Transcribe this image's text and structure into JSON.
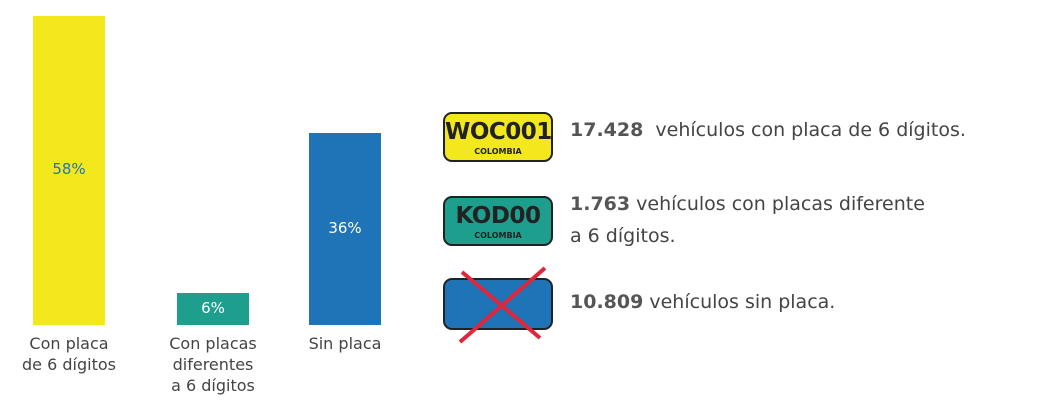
{
  "chart_data": {
    "type": "bar",
    "categories": [
      [
        "Con placa",
        "de 6 dígitos"
      ],
      [
        "Con placas",
        "diferentes",
        "a 6 dígitos"
      ],
      [
        "Sin placa"
      ]
    ],
    "values": [
      58,
      6,
      36
    ],
    "value_labels": [
      "58%",
      "6%",
      "36%"
    ],
    "colors": [
      "#f2e81c",
      "#1e9e8c",
      "#1f73b7"
    ],
    "value_label_colors": [
      "#1f73b7",
      "#ffffff",
      "#ffffff"
    ]
  },
  "legend": [
    {
      "plate": "WOC001",
      "country": "COLOMBIA",
      "count": "17.428",
      "lines": [
        "vehículos con placa de 6 dígitos."
      ]
    },
    {
      "plate": "KOD00",
      "country": "COLOMBIA",
      "count": "1.763",
      "lines": [
        "vehículos con placas diferente",
        "a 6 dígitos."
      ]
    },
    {
      "count": "10.809",
      "lines": [
        "vehículos sin placa."
      ]
    }
  ]
}
